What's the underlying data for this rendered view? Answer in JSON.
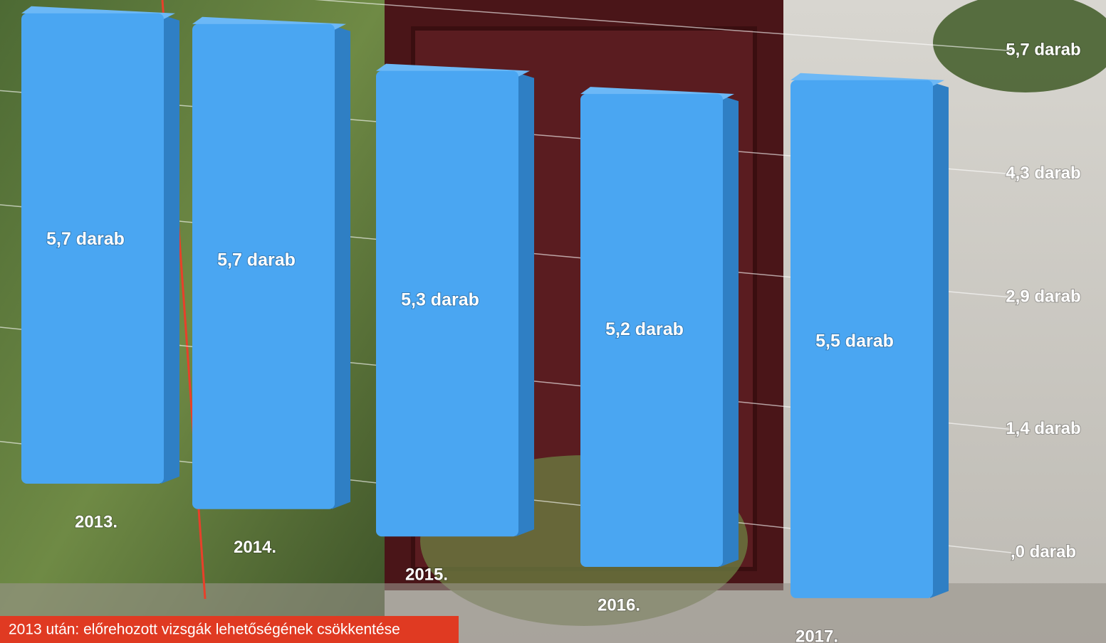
{
  "chart_data": {
    "type": "bar3d",
    "categories": [
      "2013.",
      "2014.",
      "2015.",
      "2016.",
      "2017."
    ],
    "values": [
      5.7,
      5.7,
      5.3,
      5.2,
      5.5
    ],
    "value_labels": [
      "5,7 darab",
      "5,7 darab",
      "5,3 darab",
      "5,2 darab",
      "5,5 darab"
    ],
    "color": "#4aa6f2",
    "ylim": [
      0,
      5.7
    ],
    "yticks": [
      {
        "value": 0,
        "label": ",0 darab"
      },
      {
        "value": 1.4,
        "label": "1,4 darab"
      },
      {
        "value": 2.9,
        "label": "2,9 darab"
      },
      {
        "value": 4.3,
        "label": "4,3 darab"
      },
      {
        "value": 5.7,
        "label": "5,7 darab"
      }
    ],
    "grid": true,
    "annotation": "2013 után: előrehozott vizsgák lehetőségének csökkentése"
  }
}
